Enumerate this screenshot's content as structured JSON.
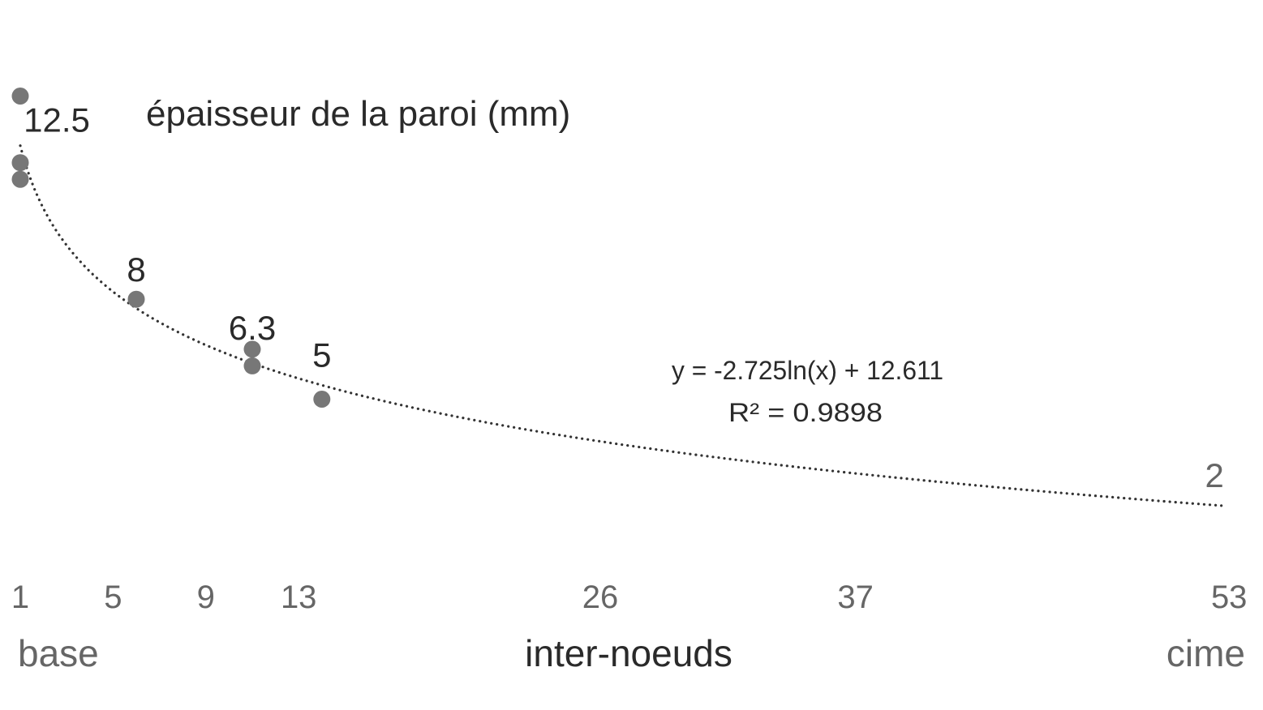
{
  "chart_data": {
    "type": "scatter",
    "title": "épaisseur de la paroi (mm)",
    "xlabel": "inter-noeuds",
    "x_start_label": "base",
    "x_end_label": "cime",
    "xticks": [
      1,
      5,
      9,
      13,
      26,
      37,
      53
    ],
    "xlim": [
      1,
      53
    ],
    "grid": false,
    "colors": {
      "points": "#777777",
      "trendline": "#333333",
      "text": "#2a2a2a",
      "ticks": "#666666"
    },
    "points": [
      {
        "x": 1,
        "y": 14.1
      },
      {
        "x": 1,
        "y": 12.1
      },
      {
        "x": 1,
        "y": 11.6
      },
      {
        "x": 6,
        "y": 8.0
      },
      {
        "x": 11,
        "y": 6.5
      },
      {
        "x": 11,
        "y": 6.0
      },
      {
        "x": 14,
        "y": 5.0
      }
    ],
    "data_labels": [
      {
        "text": "12.5",
        "x": 1,
        "y": 12.5
      },
      {
        "text": "8",
        "x": 6,
        "y": 8
      },
      {
        "text": "6.3",
        "x": 11,
        "y": 6.3
      },
      {
        "text": "5",
        "x": 14,
        "y": 5
      },
      {
        "text": "2",
        "x": 53,
        "y": 2
      }
    ],
    "trendline": {
      "type": "logarithmic",
      "slope": -2.725,
      "intercept": 12.611,
      "equation": "y = -2.725ln(x) + 12.611",
      "r2_label": "R² = 0.9898",
      "style": "dotted"
    }
  }
}
